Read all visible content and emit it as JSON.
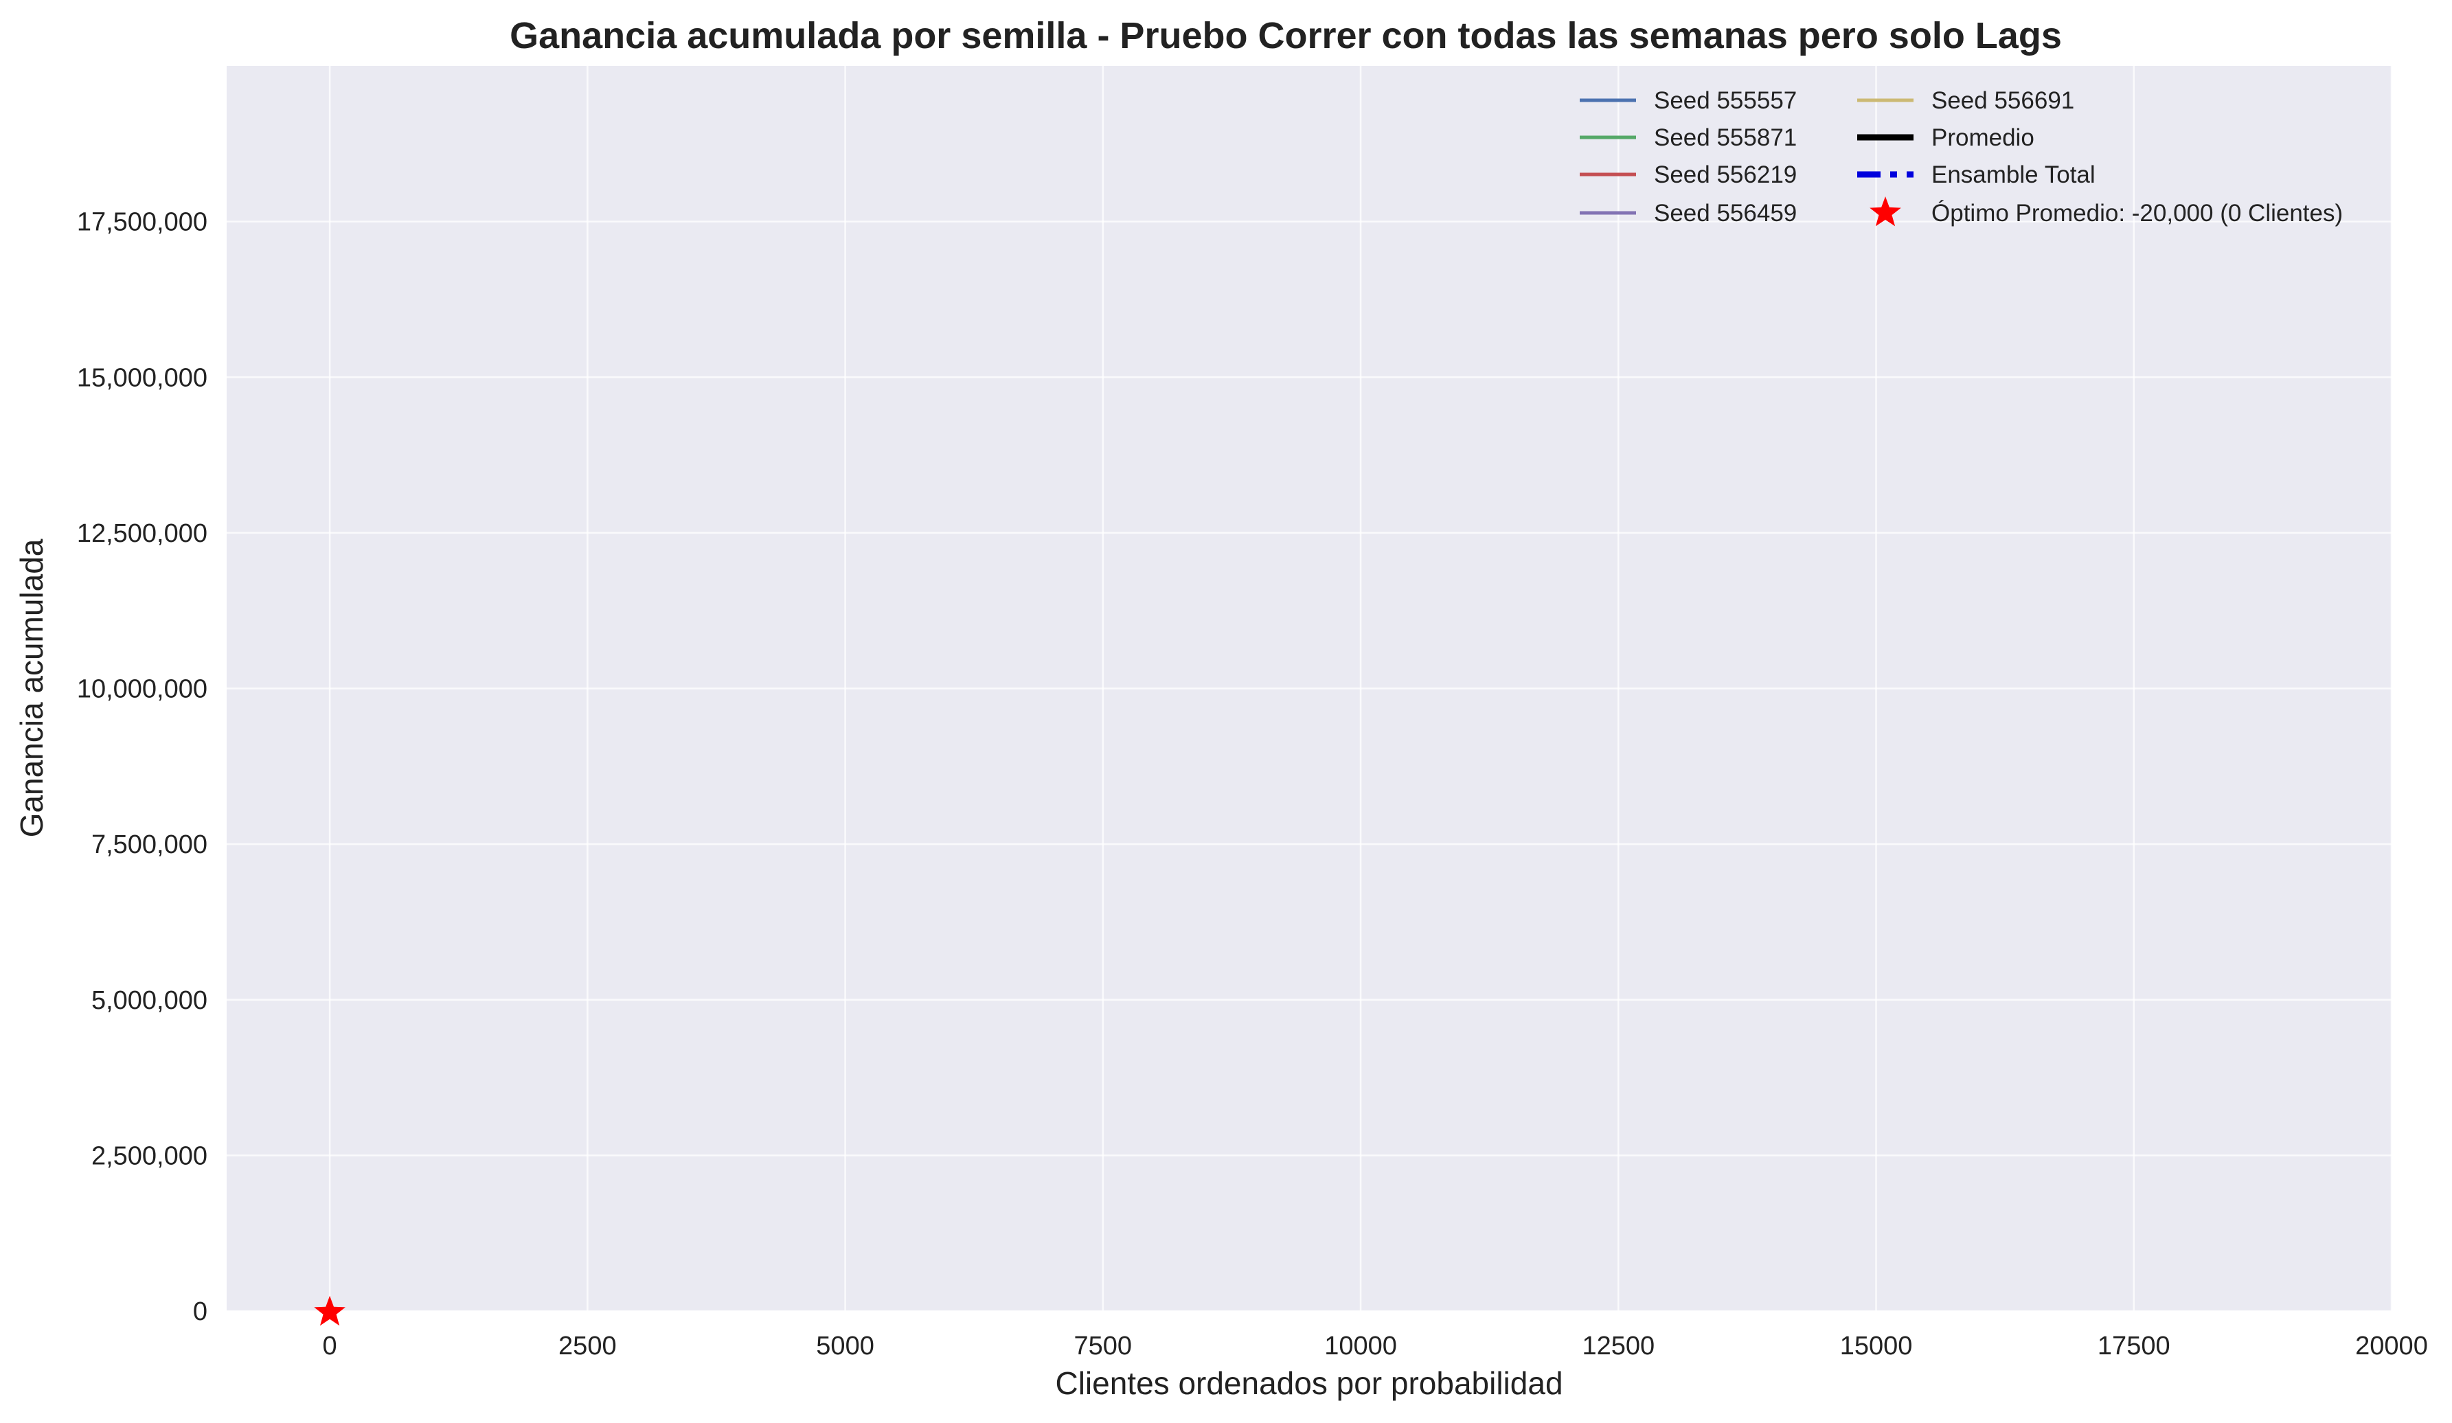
{
  "chart_data": {
    "type": "line",
    "title": "Ganancia acumulada por semilla - Pruebo Correr con todas las semanas pero solo Lags",
    "xlabel": "Clientes ordenados por probabilidad",
    "ylabel": "Ganancia acumulada",
    "xlim": [
      -1000,
      20000
    ],
    "ylim": [
      0,
      20000000
    ],
    "xticks": [
      0,
      2500,
      5000,
      7500,
      10000,
      12500,
      15000,
      17500,
      20000
    ],
    "xtick_labels": [
      "0",
      "2500",
      "5000",
      "7500",
      "10000",
      "12500",
      "15000",
      "17500",
      "20000"
    ],
    "yticks": [
      0,
      2500000,
      5000000,
      7500000,
      10000000,
      12500000,
      15000000,
      17500000
    ],
    "ytick_labels": [
      "0",
      "2,500,000",
      "5,000,000",
      "7,500,000",
      "10,000,000",
      "12,500,000",
      "15,000,000",
      "17,500,000"
    ],
    "grid": true,
    "legend_position": "top-right",
    "series": [
      {
        "name": "Seed 555557",
        "color": "#4c72b0",
        "style": "solid",
        "x": [],
        "y": []
      },
      {
        "name": "Seed 555871",
        "color": "#55a868",
        "style": "solid",
        "x": [],
        "y": []
      },
      {
        "name": "Seed 556219",
        "color": "#c44e52",
        "style": "solid",
        "x": [],
        "y": []
      },
      {
        "name": "Seed 556459",
        "color": "#8172b3",
        "style": "solid",
        "x": [],
        "y": []
      },
      {
        "name": "Seed 556691",
        "color": "#ccb974",
        "style": "solid",
        "x": [],
        "y": []
      },
      {
        "name": "Promedio",
        "color": "#000000",
        "style": "bold",
        "x": [],
        "y": []
      },
      {
        "name": "Ensamble Total",
        "color": "#0000dd",
        "style": "dashed",
        "x": [],
        "y": []
      }
    ],
    "optimum": {
      "label": "Óptimo Promedio: -20,000 (0 Clientes)",
      "x": 0,
      "y": -20000,
      "color": "#ff0000",
      "marker": "star"
    },
    "colors": {
      "plot_background": "#eaeaf2",
      "grid": "#ffffff"
    }
  }
}
